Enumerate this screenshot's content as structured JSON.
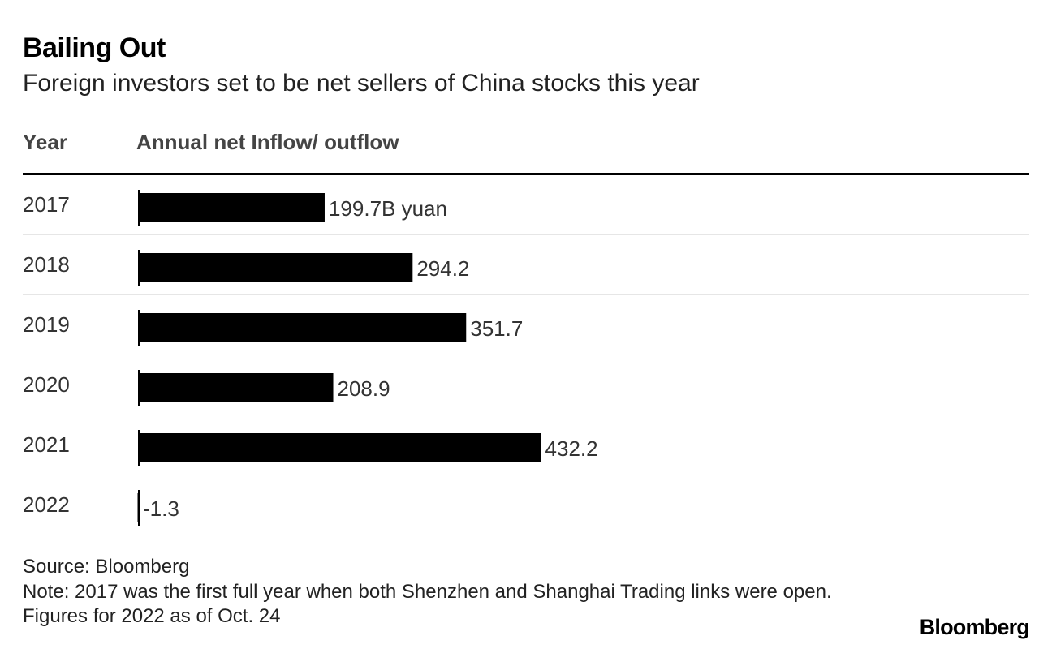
{
  "header": {
    "title": "Bailing Out",
    "subtitle": "Foreign investors set to be net sellers of China stocks this year",
    "col_year": "Year",
    "col_value": "Annual net Inflow/ outflow"
  },
  "chart_data": {
    "type": "bar",
    "orientation": "horizontal",
    "categories": [
      "2017",
      "2018",
      "2019",
      "2020",
      "2021",
      "2022"
    ],
    "values": [
      199.7,
      294.2,
      351.7,
      208.9,
      432.2,
      -1.3
    ],
    "value_labels": [
      "199.7B yuan",
      "294.2",
      "351.7",
      "208.9",
      "432.2",
      "-1.3"
    ],
    "unit": "B yuan",
    "bar_color": "#000000",
    "title": "Bailing Out",
    "subtitle": "Foreign investors set to be net sellers of China stocks this year",
    "xlabel": "Annual net Inflow/ outflow",
    "ylabel": "Year",
    "grid": false,
    "legend": "none"
  },
  "footer": {
    "source": "Source: Bloomberg",
    "note": "Note: 2017 was the first full year when both Shenzhen and Shanghai Trading links were open. Figures for 2022 as of Oct. 24",
    "logo": "Bloomberg"
  }
}
